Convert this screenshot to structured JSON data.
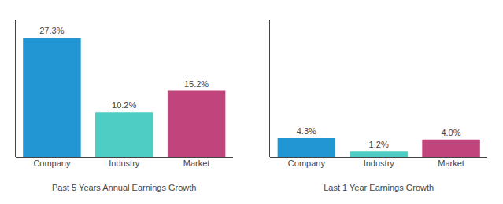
{
  "chart_data": [
    {
      "type": "bar",
      "xlabel": "Past 5 Years Annual Earnings Growth",
      "categories": [
        "Company",
        "Industry",
        "Market"
      ],
      "values": [
        27.3,
        10.2,
        15.2
      ],
      "value_labels": [
        "27.3%",
        "10.2%",
        "15.2%"
      ],
      "colors": [
        "#2196d3",
        "#4ecdc4",
        "#c2447c"
      ],
      "ylim": [
        0,
        31.5
      ],
      "data_labels": true,
      "tick_labels": "x",
      "grid": false
    },
    {
      "type": "bar",
      "xlabel": "Last 1 Year Earnings Growth",
      "categories": [
        "Company",
        "Industry",
        "Market"
      ],
      "values": [
        4.3,
        1.2,
        4.0
      ],
      "value_labels": [
        "4.3%",
        "1.2%",
        "4.0%"
      ],
      "colors": [
        "#2196d3",
        "#4ecdc4",
        "#c2447c"
      ],
      "ylim": [
        0,
        31.5
      ],
      "data_labels": true,
      "tick_labels": "x",
      "grid": false
    }
  ]
}
